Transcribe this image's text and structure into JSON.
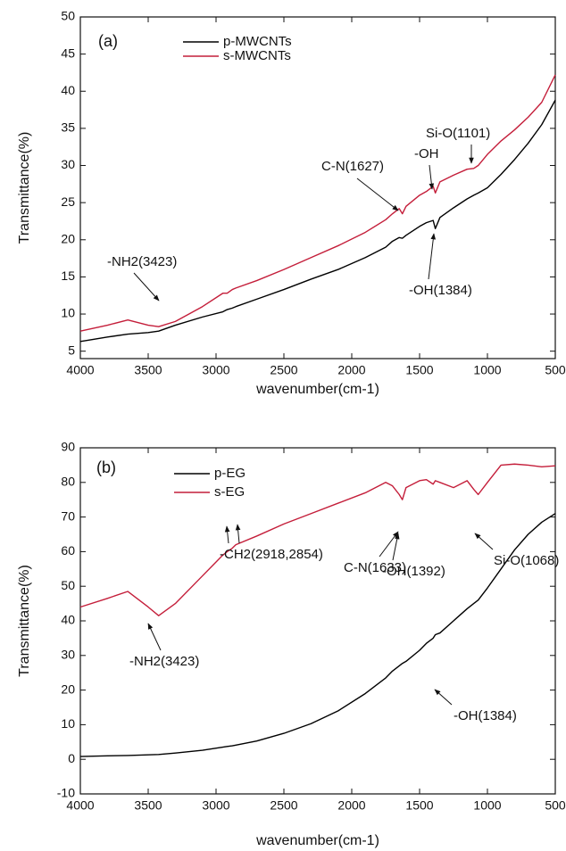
{
  "chart_data": [
    {
      "type": "line",
      "label": "(a)",
      "xlabel": "wavenumber(cm-1)",
      "ylabel": "Transmittance(%)",
      "x": [
        4000,
        3800,
        3650,
        3500,
        3423,
        3300,
        3100,
        2950,
        2918,
        2880,
        2854,
        2700,
        2500,
        2300,
        2100,
        1900,
        1750,
        1700,
        1650,
        1627,
        1600,
        1500,
        1450,
        1400,
        1384,
        1350,
        1250,
        1150,
        1101,
        1068,
        1000,
        900,
        800,
        700,
        600,
        500
      ],
      "series": [
        {
          "name": "p-MWCNTs",
          "color": "#000000",
          "values": [
            6.3,
            6.9,
            7.3,
            7.5,
            7.7,
            8.5,
            9.6,
            10.3,
            10.6,
            10.8,
            11,
            12,
            13.3,
            14.7,
            16,
            17.6,
            19,
            19.8,
            20.3,
            20.2,
            20.6,
            21.8,
            22.3,
            22.6,
            21.5,
            23,
            24.3,
            25.5,
            26,
            26.3,
            27,
            28.8,
            30.8,
            33,
            35.5,
            38.8
          ]
        },
        {
          "name": "s-MWCNTs",
          "color": "#c41e3a",
          "values": [
            7.7,
            8.5,
            9.2,
            8.5,
            8.3,
            9,
            11,
            12.8,
            12.8,
            13.3,
            13.5,
            14.5,
            16,
            17.6,
            19.2,
            21,
            22.7,
            23.5,
            24.2,
            23.5,
            24.5,
            26,
            26.5,
            27.2,
            26.3,
            27.8,
            28.7,
            29.5,
            29.6,
            30,
            31.5,
            33.3,
            34.8,
            36.5,
            38.5,
            42.2
          ]
        }
      ],
      "xlim": [
        4000,
        500
      ],
      "ylim": [
        4,
        50
      ],
      "xticks": [
        4000,
        3500,
        3000,
        2500,
        2000,
        1500,
        1000,
        500
      ],
      "yticks": [
        5,
        10,
        15,
        20,
        25,
        30,
        35,
        40,
        45,
        50
      ],
      "legend": "upper left",
      "annotations": [
        "-NH2(3423)",
        "C-N(1627)",
        "-OH",
        "Si-O(1101)",
        "-OH(1384)"
      ]
    },
    {
      "type": "line",
      "label": "(b)",
      "xlabel": "wavenumber(cm-1)",
      "ylabel": "Transmittance(%)",
      "x": [
        4000,
        3800,
        3650,
        3500,
        3423,
        3300,
        3100,
        2950,
        2918,
        2880,
        2854,
        2700,
        2500,
        2300,
        2100,
        1900,
        1750,
        1700,
        1650,
        1627,
        1600,
        1500,
        1450,
        1400,
        1384,
        1350,
        1250,
        1150,
        1101,
        1068,
        1000,
        900,
        800,
        700,
        600,
        500
      ],
      "series": [
        {
          "name": "p-EG",
          "color": "#000000",
          "values": [
            0.8,
            1,
            1.1,
            1.3,
            1.4,
            1.8,
            2.6,
            3.5,
            3.7,
            3.9,
            4.1,
            5.3,
            7.5,
            10.3,
            14,
            19,
            23.5,
            25.5,
            27,
            27.7,
            28.3,
            31.5,
            33.5,
            35,
            36,
            36.5,
            40,
            43.5,
            45,
            46,
            49.5,
            55,
            60.5,
            65,
            68.5,
            71
          ]
        },
        {
          "name": "s-EG",
          "color": "#c41e3a",
          "values": [
            44,
            46.5,
            48.5,
            44,
            41.5,
            45,
            53,
            59,
            60,
            61,
            62,
            64.5,
            68,
            71,
            74,
            77,
            80,
            79,
            76.5,
            75,
            78.5,
            80.5,
            80.8,
            79.5,
            80.5,
            80,
            78.5,
            80.5,
            78,
            76.5,
            80,
            85,
            85.3,
            85,
            84.5,
            84.8
          ]
        }
      ],
      "xlim": [
        4000,
        500
      ],
      "ylim": [
        -10,
        90
      ],
      "xticks": [
        4000,
        3500,
        3000,
        2500,
        2000,
        1500,
        1000,
        500
      ],
      "yticks": [
        -10,
        0,
        10,
        20,
        30,
        40,
        50,
        60,
        70,
        80,
        90
      ],
      "legend": "upper left",
      "annotations": [
        "-CH2(2918,2854)",
        "-NH2(3423)",
        "C-N(1633)",
        "-OH(1392)",
        "Si-O(1068)",
        "-OH(1384)"
      ]
    }
  ]
}
